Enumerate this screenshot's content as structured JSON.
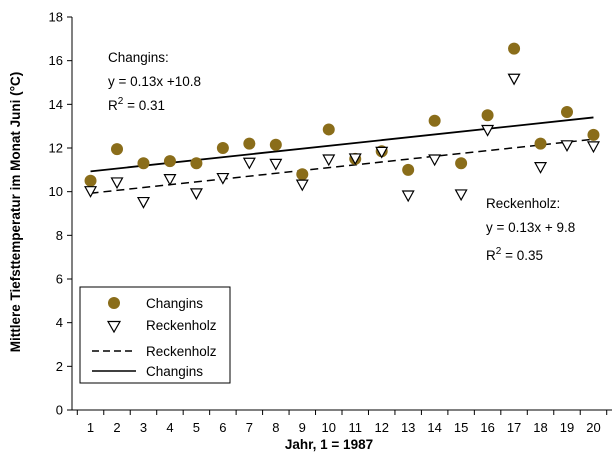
{
  "chart_data": {
    "type": "scatter",
    "xlabel": "Jahr, 1 = 1987",
    "ylabel": "Mittlere Tiefsttemperatur im Monat Juni (°C)",
    "x": [
      1,
      2,
      3,
      4,
      5,
      6,
      7,
      8,
      9,
      10,
      11,
      12,
      13,
      14,
      15,
      16,
      17,
      18,
      19,
      20
    ],
    "xlim": [
      0.3,
      20.7
    ],
    "ylim": [
      0,
      18
    ],
    "x_ticks": [
      "1",
      "2",
      "3",
      "4",
      "5",
      "6",
      "7",
      "8",
      "9",
      "10",
      "11",
      "12",
      "13",
      "14",
      "15",
      "16",
      "17",
      "18",
      "19",
      "20"
    ],
    "y_ticks": [
      "0",
      "2",
      "4",
      "6",
      "8",
      "10",
      "12",
      "14",
      "16",
      "18"
    ],
    "grid": false,
    "legend_position": "bottom-left",
    "series": [
      {
        "name": "Changins",
        "marker": "filled-circle",
        "color": "#8a6d1a",
        "values": [
          10.5,
          11.95,
          11.3,
          11.4,
          11.3,
          12.0,
          12.2,
          12.15,
          10.8,
          12.85,
          11.5,
          11.85,
          11.0,
          13.25,
          11.3,
          13.5,
          16.55,
          12.2,
          13.65,
          12.6
        ]
      },
      {
        "name": "Reckenholz",
        "marker": "open-triangle-down",
        "color": "#000000",
        "values": [
          10.0,
          10.4,
          9.5,
          10.55,
          9.9,
          10.6,
          11.3,
          11.25,
          10.3,
          11.45,
          11.5,
          11.8,
          9.8,
          11.45,
          9.85,
          12.8,
          15.15,
          11.1,
          12.1,
          12.05
        ]
      }
    ],
    "trendlines": [
      {
        "name": "Reckenholz",
        "style": "dashed",
        "color": "#000000",
        "slope": 0.13,
        "intercept": 9.8
      },
      {
        "name": "Changins",
        "style": "solid",
        "color": "#000000",
        "slope": 0.13,
        "intercept": 10.8
      }
    ],
    "annotations": {
      "changins": {
        "title": "Changins:",
        "equation": "y = 0.13x +10.8",
        "r2_base": "R",
        "r2_sup": "2",
        "r2_value": " = 0.31"
      },
      "reckenholz": {
        "title": "Reckenholz:",
        "equation": "y = 0.13x + 9.8",
        "r2_base": "R",
        "r2_sup": "2",
        "r2_value": " = 0.35"
      }
    },
    "legend": [
      {
        "label": "Changins",
        "kind": "filled-circle"
      },
      {
        "label": "Reckenholz",
        "kind": "open-triangle-down"
      },
      {
        "label": "Reckenholz",
        "kind": "dashed-line"
      },
      {
        "label": "Changins",
        "kind": "solid-line"
      }
    ]
  }
}
